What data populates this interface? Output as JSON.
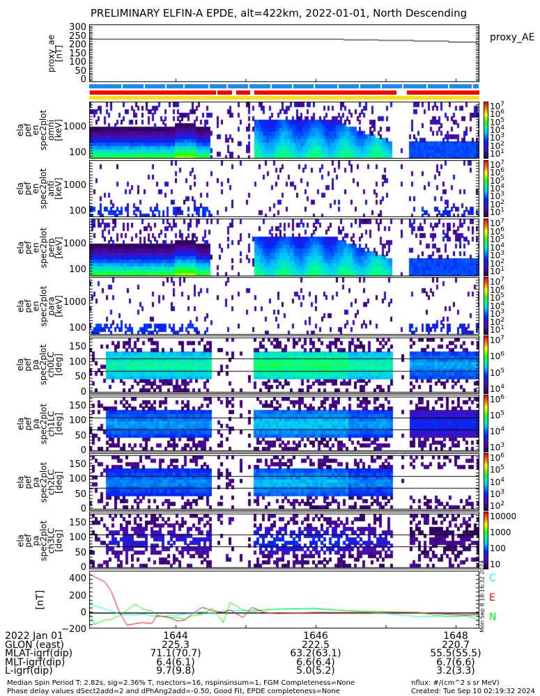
{
  "title": "PRELIMINARY ELFIN-A EPDE, alt=422km, 2022-01-01, North Descending",
  "proxy_panel": {
    "ylabel": [
      "proxy_ae",
      "[nT]"
    ],
    "legend": "proxy_AE",
    "ticks": [
      "300",
      "250",
      "200",
      "150",
      "100",
      "50",
      "0"
    ]
  },
  "energy_panels": [
    {
      "ylabel": [
        "ela",
        "pef",
        "en",
        "spec2plot",
        "omni",
        "[keV]"
      ],
      "ticks": [
        "1000",
        "100"
      ],
      "cbar": [
        [
          "10",
          "7"
        ],
        [
          "10",
          "6"
        ],
        [
          "10",
          "5"
        ],
        [
          "10",
          "4"
        ],
        [
          "10",
          "3"
        ],
        [
          "10",
          "2"
        ],
        [
          "10",
          "1"
        ]
      ],
      "unit": "nflux",
      "kind": "omni"
    },
    {
      "ylabel": [
        "ela",
        "pef",
        "en",
        "spec2plot",
        "anti",
        "[keV]"
      ],
      "ticks": [
        "1000",
        "100"
      ],
      "cbar": [
        [
          "10",
          "7"
        ],
        [
          "10",
          "6"
        ],
        [
          "10",
          "5"
        ],
        [
          "10",
          "4"
        ],
        [
          "10",
          "3"
        ],
        [
          "10",
          "2"
        ],
        [
          "10",
          "1"
        ]
      ],
      "unit": "nflux",
      "kind": "anti"
    },
    {
      "ylabel": [
        "ela",
        "pef",
        "en",
        "spec2plot",
        "perp",
        "[keV]"
      ],
      "ticks": [
        "1000",
        "100"
      ],
      "cbar": [
        [
          "10",
          "7"
        ],
        [
          "10",
          "6"
        ],
        [
          "10",
          "5"
        ],
        [
          "10",
          "4"
        ],
        [
          "10",
          "3"
        ],
        [
          "10",
          "2"
        ],
        [
          "10",
          "1"
        ]
      ],
      "unit": "nflux",
      "kind": "perp"
    },
    {
      "ylabel": [
        "ela",
        "pef",
        "en",
        "spec2plot",
        "para",
        "[keV]"
      ],
      "ticks": [
        "1000",
        "100"
      ],
      "cbar": [
        [
          "10",
          "7"
        ],
        [
          "10",
          "6"
        ],
        [
          "10",
          "5"
        ],
        [
          "10",
          "4"
        ],
        [
          "10",
          "3"
        ],
        [
          "10",
          "2"
        ],
        [
          "10",
          "1"
        ]
      ],
      "unit": "nflux",
      "kind": "para"
    }
  ],
  "pa_panels": [
    {
      "ylabel": [
        "ela",
        "pef",
        "pa",
        "spec2plot",
        "ch0LC",
        "[deg]"
      ],
      "ticks": [
        "150",
        "100",
        "50",
        "0"
      ],
      "cbar": [
        [
          "10",
          "7"
        ],
        [
          "10",
          "6"
        ],
        [
          "10",
          "5"
        ],
        [
          "10",
          "4"
        ]
      ],
      "unit": "nflux",
      "level": 0.55
    },
    {
      "ylabel": [
        "ela",
        "pef",
        "pa",
        "spec2plot",
        "ch1LC",
        "[deg]"
      ],
      "ticks": [
        "150",
        "100",
        "50",
        "0"
      ],
      "cbar": [
        [
          "10",
          "6"
        ],
        [
          "10",
          "5"
        ],
        [
          "10",
          "4"
        ],
        [
          "10",
          "3"
        ]
      ],
      "unit": "nflux",
      "level": 0.42
    },
    {
      "ylabel": [
        "ela",
        "pef",
        "pa",
        "spec2plot",
        "ch2LC",
        "[deg]"
      ],
      "ticks": [
        "150",
        "100",
        "50",
        "0"
      ],
      "cbar": [
        [
          "10",
          "6"
        ],
        [
          "10",
          "5"
        ],
        [
          "10",
          "4"
        ],
        [
          "10",
          "3"
        ],
        [
          "10",
          "2"
        ]
      ],
      "unit": "nflux",
      "level": 0.4
    },
    {
      "ylabel": [
        "ela",
        "pef",
        "pa",
        "spec2plot",
        "ch3LC",
        "[deg]"
      ],
      "ticks": [
        "150",
        "100",
        "50",
        "0"
      ],
      "cbar": [
        [
          "",
          "10000"
        ],
        [
          "",
          "1000"
        ],
        [
          "",
          "100"
        ],
        [
          "",
          "10"
        ]
      ],
      "unit": "nflux",
      "level": 0.25
    }
  ],
  "mag_panel": {
    "ylabel": "[nT]",
    "ticks": [
      "400",
      "200",
      "0",
      "−200"
    ],
    "legend": [
      {
        "label": "C",
        "color": "#00ffff"
      },
      {
        "label": "E",
        "color": "#ff0000"
      },
      {
        "label": "N",
        "color": "#00ff00"
      }
    ],
    "stamp": "Mon Sep  8 18:16:32 2024"
  },
  "chart_data": {
    "type": "line",
    "time_unit": "minutes after 16:00 UT",
    "xlim": [
      42.77,
      48.34
    ],
    "proxy_ae": {
      "ylabel": "proxy_ae [nT]",
      "ylim": [
        0,
        310
      ],
      "t": [
        42.77,
        45.9,
        46.4,
        46.9,
        47.4,
        47.9,
        48.3
      ],
      "values": [
        235,
        235,
        231,
        228,
        224,
        218,
        213
      ]
    },
    "mag": {
      "ylabel": "[nT]",
      "ylim": [
        -230,
        520
      ],
      "t": [
        42.78,
        42.84,
        42.99,
        43.08,
        43.2,
        43.31,
        43.43,
        43.53,
        43.66,
        43.73,
        43.88,
        44.03,
        44.13,
        44.23,
        44.38,
        44.53,
        44.68,
        44.78,
        44.96,
        45.09,
        45.27,
        45.47,
        45.97,
        46.47,
        46.97,
        47.46,
        47.86,
        48.16,
        48.34
      ],
      "series": [
        {
          "name": "E",
          "color": "#ff0000",
          "values": [
            450,
            420,
            360,
            250,
            0,
            -150,
            -130,
            -120,
            -130,
            -40,
            -50,
            -100,
            -90,
            -20,
            60,
            20,
            0,
            30,
            -60,
            60,
            0,
            -10,
            0,
            0,
            0,
            0,
            -20,
            -30,
            -20
          ]
        },
        {
          "name": "N",
          "color": "#00ff00",
          "values": [
            -30,
            -140,
            -90,
            -80,
            -40,
            30,
            100,
            40,
            20,
            -30,
            -60,
            -60,
            -80,
            -40,
            -20,
            50,
            -120,
            120,
            30,
            10,
            30,
            40,
            50,
            20,
            10,
            0,
            -50,
            -40,
            -90
          ]
        },
        {
          "name": "C",
          "color": "#00ffff",
          "values": [
            100,
            80,
            40,
            20,
            -20,
            -30,
            -30,
            -20,
            -40,
            -50,
            -40,
            -30,
            -20,
            -10,
            10,
            -10,
            20,
            20,
            20,
            30,
            30,
            40,
            40,
            20,
            -10,
            -50,
            -40,
            -40,
            -40
          ]
        }
      ]
    }
  },
  "footer": {
    "rows": [
      {
        "label": "2022 Jan 01",
        "values": [
          "1644",
          "1646",
          "1648"
        ]
      },
      {
        "label": "GLON (east)",
        "values": [
          "225.3",
          "222.5",
          "220.7"
        ]
      },
      {
        "label": "MLAT-igrf(dip)",
        "values": [
          "71.1(70.7)",
          "63.2(63.1)",
          "55.5(55.5)"
        ]
      },
      {
        "label": "MLT-igrf(dip)",
        "values": [
          "6.4(6.1)",
          "6.6(6.4)",
          "6.7(6.6)"
        ]
      },
      {
        "label": "L-igrf(dip)",
        "values": [
          "9.7(9.8)",
          "5.0(5.2)",
          "3.2(3.3)"
        ]
      }
    ],
    "note1": "Median Spin Period T: 2.82s, sig=2.36% T, nsectors=16, nspinsinsum=1, FGM Completeness=None",
    "note2": "Phase delay values dSect2add=2 and dPhAng2add=-0.50, Good Fit, EPDE completeness=None",
    "units": "nflux: #/(cm^2 s sr MeV)",
    "created": "Created: Tue Sep 10 02:19:32 2024"
  }
}
